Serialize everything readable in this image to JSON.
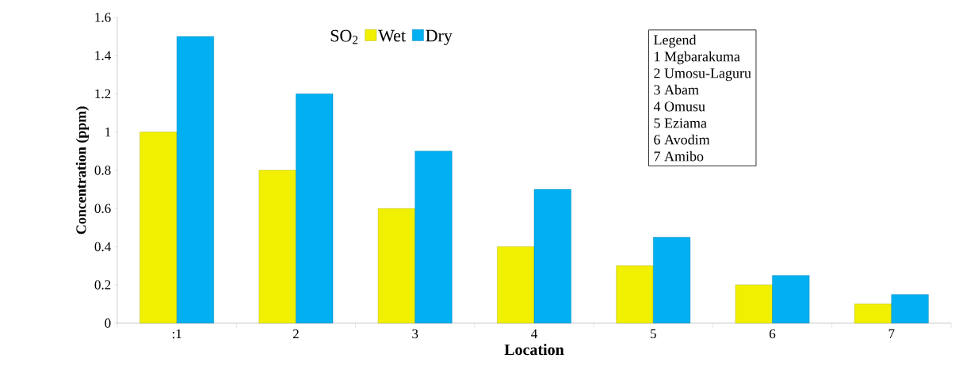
{
  "chart_data": {
    "type": "bar",
    "xlabel": "Location",
    "ylabel": "Concentration (ppm)",
    "legend_title": "SO$_{2}$",
    "categories": [
      ":1",
      "2",
      "3",
      "4",
      "5",
      "6",
      "7"
    ],
    "series": [
      {
        "name": "Wet",
        "color": "#f0f000",
        "values": [
          1.0,
          0.8,
          0.6,
          0.4,
          0.3,
          0.2,
          0.1
        ]
      },
      {
        "name": "Dry",
        "color": "#00b0f0",
        "values": [
          1.5,
          1.2,
          0.9,
          0.7,
          0.45,
          0.25,
          0.15
        ]
      }
    ],
    "ylim": [
      0,
      1.6
    ],
    "yticks": [
      0,
      0.2,
      0.4,
      0.6,
      0.8,
      1,
      1.2,
      1.4,
      1.6
    ],
    "grid": false,
    "legend": "top",
    "annotations": [
      "Legend",
      "1 Mgbarakuma",
      "2 Umosu-Laguru",
      "3 Abam",
      "4 Omusu",
      "5 Eziama",
      "6 Avodim",
      "7 Amibo"
    ]
  }
}
